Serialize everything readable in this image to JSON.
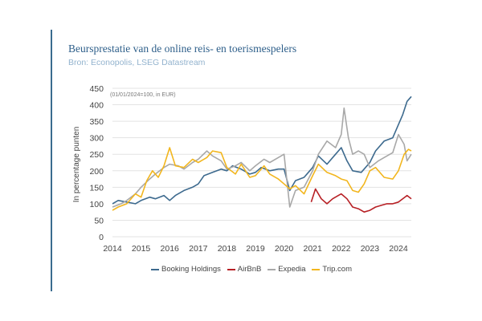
{
  "header": {
    "title": "Beursprestatie van de online reis- en toerismespelers",
    "source": "Bron: Econopolis, LSEG Datastream"
  },
  "chart_data": {
    "type": "line",
    "title": "Beursprestatie van de online reis- en toerismespelers",
    "subtitle": "Bron: Econopolis, LSEG Datastream",
    "note": "(01/01/2024=100, in EUR)",
    "ylabel": "In percentage punten",
    "xlabel": "",
    "xlim": [
      2014,
      2024.45
    ],
    "ylim": [
      0,
      450
    ],
    "x_ticks": [
      "2014",
      "2015",
      "2016",
      "2017",
      "2018",
      "2019",
      "2020",
      "2021",
      "2022",
      "2023",
      "2024"
    ],
    "y_ticks": [
      "0",
      "50",
      "100",
      "150",
      "200",
      "250",
      "300",
      "350",
      "400",
      "450"
    ],
    "grid": "horizontal",
    "legend_position": "bottom",
    "series": [
      {
        "name": "Booking Holdings",
        "color": "#3d6a8e",
        "x": [
          2014.0,
          2014.2,
          2014.5,
          2014.8,
          2015.0,
          2015.3,
          2015.5,
          2015.8,
          2016.0,
          2016.2,
          2016.5,
          2016.8,
          2017.0,
          2017.2,
          2017.5,
          2017.8,
          2018.0,
          2018.2,
          2018.5,
          2018.8,
          2019.0,
          2019.2,
          2019.5,
          2019.8,
          2020.0,
          2020.2,
          2020.4,
          2020.7,
          2021.0,
          2021.2,
          2021.5,
          2021.8,
          2022.0,
          2022.2,
          2022.4,
          2022.7,
          2023.0,
          2023.2,
          2023.5,
          2023.8,
          2024.0,
          2024.15,
          2024.3,
          2024.45
        ],
        "y": [
          100,
          110,
          105,
          100,
          110,
          120,
          115,
          125,
          110,
          125,
          140,
          150,
          160,
          185,
          195,
          205,
          200,
          215,
          205,
          190,
          195,
          210,
          200,
          205,
          205,
          140,
          170,
          180,
          210,
          245,
          220,
          250,
          270,
          230,
          200,
          195,
          225,
          260,
          290,
          300,
          340,
          370,
          410,
          425
        ]
      },
      {
        "name": "AirBnB",
        "color": "#b72025",
        "x": [
          2020.95,
          2021.1,
          2021.3,
          2021.5,
          2021.7,
          2021.9,
          2022.0,
          2022.2,
          2022.4,
          2022.6,
          2022.8,
          2023.0,
          2023.2,
          2023.4,
          2023.6,
          2023.8,
          2024.0,
          2024.15,
          2024.3,
          2024.45
        ],
        "y": [
          105,
          145,
          115,
          100,
          115,
          125,
          130,
          115,
          90,
          85,
          75,
          80,
          90,
          95,
          100,
          100,
          105,
          115,
          125,
          115
        ]
      },
      {
        "name": "Expedia",
        "color": "#a8a8a8",
        "x": [
          2014.0,
          2014.3,
          2014.5,
          2014.8,
          2015.0,
          2015.3,
          2015.5,
          2015.8,
          2016.0,
          2016.3,
          2016.5,
          2016.8,
          2017.0,
          2017.3,
          2017.5,
          2017.8,
          2018.0,
          2018.3,
          2018.5,
          2018.8,
          2019.0,
          2019.3,
          2019.5,
          2019.8,
          2020.0,
          2020.2,
          2020.4,
          2020.7,
          2021.0,
          2021.2,
          2021.5,
          2021.8,
          2022.0,
          2022.1,
          2022.25,
          2022.4,
          2022.6,
          2022.8,
          2023.0,
          2023.3,
          2023.5,
          2023.8,
          2024.0,
          2024.2,
          2024.3,
          2024.45
        ],
        "y": [
          90,
          100,
          110,
          130,
          150,
          175,
          190,
          210,
          220,
          215,
          205,
          225,
          235,
          260,
          245,
          230,
          205,
          215,
          225,
          200,
          215,
          235,
          225,
          240,
          250,
          90,
          140,
          150,
          200,
          250,
          290,
          270,
          310,
          390,
          300,
          250,
          260,
          250,
          210,
          230,
          240,
          255,
          310,
          280,
          230,
          250
        ]
      },
      {
        "name": "Trip.com",
        "color": "#f2b61e",
        "x": [
          2014.0,
          2014.2,
          2014.5,
          2014.8,
          2015.0,
          2015.2,
          2015.4,
          2015.6,
          2015.8,
          2016.0,
          2016.2,
          2016.5,
          2016.8,
          2017.0,
          2017.3,
          2017.5,
          2017.8,
          2018.0,
          2018.3,
          2018.5,
          2018.8,
          2019.0,
          2019.3,
          2019.5,
          2019.8,
          2020.0,
          2020.2,
          2020.4,
          2020.7,
          2021.0,
          2021.2,
          2021.5,
          2021.8,
          2022.0,
          2022.2,
          2022.4,
          2022.6,
          2022.8,
          2023.0,
          2023.2,
          2023.5,
          2023.8,
          2024.0,
          2024.2,
          2024.35,
          2024.45
        ],
        "y": [
          80,
          90,
          100,
          130,
          120,
          170,
          200,
          180,
          215,
          270,
          215,
          210,
          235,
          225,
          240,
          260,
          255,
          210,
          190,
          220,
          180,
          185,
          215,
          190,
          175,
          160,
          145,
          155,
          130,
          185,
          220,
          195,
          185,
          175,
          170,
          140,
          135,
          160,
          200,
          210,
          180,
          175,
          200,
          250,
          265,
          260
        ]
      }
    ]
  }
}
